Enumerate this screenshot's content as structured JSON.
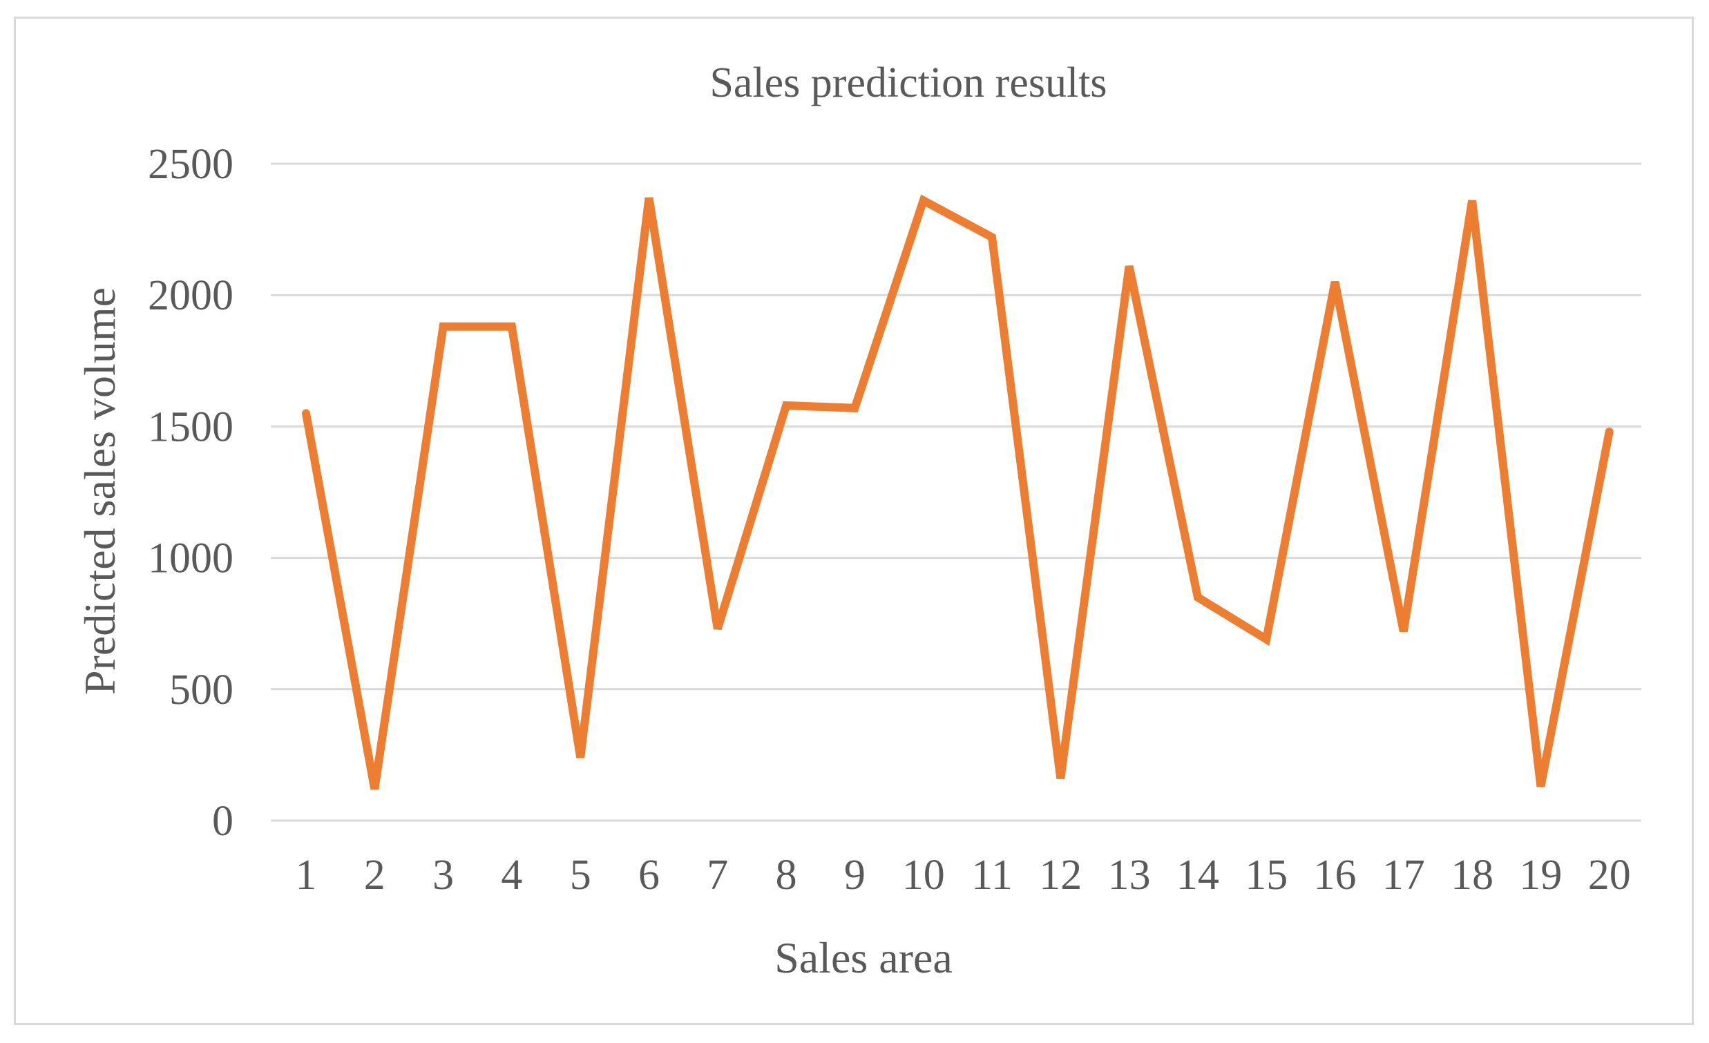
{
  "chart_data": {
    "type": "line",
    "title": "Sales prediction results",
    "xlabel": "Sales area",
    "ylabel": "Predicted sales volume",
    "categories": [
      "1",
      "2",
      "3",
      "4",
      "5",
      "6",
      "7",
      "8",
      "9",
      "10",
      "11",
      "12",
      "13",
      "14",
      "15",
      "16",
      "17",
      "18",
      "19",
      "20"
    ],
    "series": [
      {
        "values": [
          1550,
          120,
          1880,
          1880,
          240,
          2370,
          730,
          1580,
          1570,
          2360,
          2220,
          160,
          2110,
          850,
          690,
          2050,
          720,
          2360,
          130,
          1480
        ],
        "color": "#ed7d31"
      }
    ],
    "ylim": [
      0,
      2500
    ],
    "yticks": [
      0,
      500,
      1000,
      1500,
      2000,
      2500
    ],
    "grid": true,
    "legend": "none"
  }
}
